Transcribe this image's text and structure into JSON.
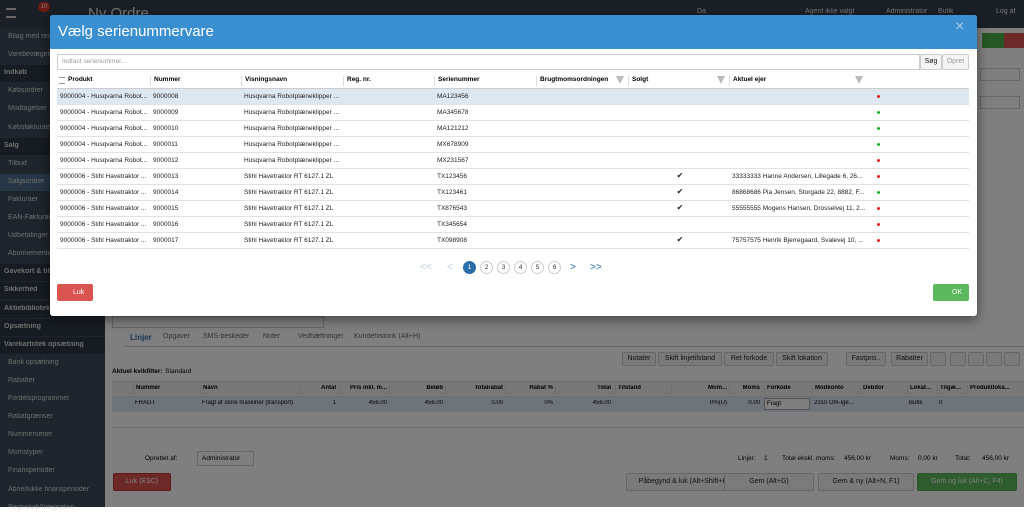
{
  "topbar": {
    "title": "Ny Ordre",
    "badge": "10",
    "language": "Da",
    "agent": "Agent ikke valgt",
    "user": "Administrator",
    "company": "Butik",
    "logout": "Log af"
  },
  "sidebar": {
    "items": [
      {
        "label": "Bilag med res",
        "section": false
      },
      {
        "label": "Varebevægelser",
        "section": false
      },
      {
        "label": "Indkøb",
        "section": true
      },
      {
        "label": "Købsordrer",
        "section": false
      },
      {
        "label": "Modtagelser",
        "section": false
      },
      {
        "label": "Købsfakturaer",
        "section": false
      },
      {
        "label": "Salg",
        "section": true
      },
      {
        "label": "Tilbud",
        "section": false
      },
      {
        "label": "Salgsordrer",
        "section": false,
        "active": true
      },
      {
        "label": "Fakturaer",
        "section": false
      },
      {
        "label": "EAN-Fakturaer",
        "section": false
      },
      {
        "label": "Udbetalinger",
        "section": false
      },
      {
        "label": "Abonnementer",
        "section": false
      },
      {
        "label": "Gavekort & tilgodebeviser",
        "section": true
      },
      {
        "label": "Sikkerhed",
        "section": true
      },
      {
        "label": "Aktiebibliotek",
        "section": true
      },
      {
        "label": "Opsætning",
        "section": true
      },
      {
        "label": "Varekartotek opsætning",
        "section": true
      },
      {
        "label": "Bank opsætning",
        "section": false
      },
      {
        "label": "Rabatter",
        "section": false
      },
      {
        "label": "Fordelsprogrammer",
        "section": false
      },
      {
        "label": "Rabatgrænser",
        "section": false
      },
      {
        "label": "Nummerserier",
        "section": false
      },
      {
        "label": "Momstyper",
        "section": false
      },
      {
        "label": "Finansperioder",
        "section": false
      },
      {
        "label": "Åbne/lukke finansperioder",
        "section": false
      },
      {
        "label": "Regnskab/Integration",
        "section": false
      }
    ]
  },
  "page": {
    "tabs": [
      "Linjer",
      "Opgaver",
      "SMS-beskeder",
      "Noter",
      "Vedhæftninger",
      "Kundehistorik (Alt+H)"
    ],
    "toolbar": [
      "Notater",
      "Skift linjetilstand",
      "Ret forkode",
      "Skift lokation",
      "Fastpris..",
      "Rabatter"
    ],
    "filter_label": "Aktuel kvikfilter:",
    "filter_value": "Standard",
    "columns": [
      "Nummer",
      "Navn",
      "Antal",
      "Pris inkl. m...",
      "Beløb",
      "Totalrabat",
      "Rabat %",
      "Total",
      "Tilstand",
      "Mom...",
      "Moms",
      "Forkode",
      "Modkonto",
      "Debitor",
      "Lokat...",
      "Tilgæ...",
      "Produktloka..."
    ],
    "row": [
      "FRAGT",
      "Fragt af store maskiner (transport)",
      "1",
      "456,00",
      "456,00",
      "0.00",
      "0%",
      "456,00",
      null,
      "0%(U)",
      "0.00",
      "Fragt",
      "2310 Om-igen a",
      null,
      "Butik",
      "0",
      null
    ],
    "created_by_label": "Oprettet af:",
    "created_by": "Administrator",
    "totals": [
      "Linjer:",
      "1",
      "Total ekskl. moms:",
      "456,00 kr",
      "Moms:",
      "0,00 kr",
      "Total:",
      "456,00 kr"
    ],
    "buttons": [
      "Luk (ESC)",
      "Påbegynd & luk (Alt+Shift+K)",
      "Gem (Alt+G)",
      "Gem & ny (Alt+N, F1)",
      "Gem og luk (Alt+C, F4)"
    ]
  },
  "modal": {
    "title": "Vælg serienummervare",
    "close": "×",
    "search_placeholder": "Indtast serienummer...",
    "search_button": "Søg",
    "create_button": "Opret",
    "columns": [
      "Produkt",
      "Nummer",
      "Visningsnavn",
      "Reg. nr.",
      "Serienummer",
      "Brugtmomsordningen",
      "Solgt",
      "Aktuel ejer"
    ],
    "rows": [
      [
        "9000004 - Husqvarna Robot...",
        "9000008",
        "Husqvarna Robotplæneklipper ...",
        null,
        "MA123456",
        null,
        null,
        null
      ],
      [
        "9000004 - Husqvarna Robot...",
        "9000009",
        "Husqvarna Robotplæneklipper ...",
        null,
        "MA345678",
        null,
        null,
        null
      ],
      [
        "9000004 - Husqvarna Robot...",
        "9000010",
        "Husqvarna Robotplæneklipper ...",
        null,
        "MA121212",
        null,
        null,
        null
      ],
      [
        "9000004 - Husqvarna Robot...",
        "9000011",
        "Husqvarna Robotplæneklipper ...",
        null,
        "MX678909",
        null,
        null,
        null
      ],
      [
        "9000004 - Husqvarna Robot...",
        "9000012",
        "Husqvarna Robotplæneklipper ...",
        null,
        "MX231567",
        null,
        null,
        null
      ],
      [
        "9000006 - Stihl Havetraktor ...",
        "9000013",
        "Stihl Havetraktor RT 6127.1 ZL",
        null,
        "TX123456",
        null,
        "✔",
        "33333333 Hanne Andersen, Lillegade 6, 26..."
      ],
      [
        "9000006 - Stihl Havetraktor ...",
        "9000014",
        "Stihl Havetraktor RT 6127.1 ZL",
        null,
        "TX123461",
        null,
        "✔",
        "86868686 Pia Jensen, Storgade 22, 8882, F..."
      ],
      [
        "9000006 - Stihl Havetraktor ...",
        "9000015",
        "Stihl Havetraktor RT 6127.1 ZL",
        null,
        "TX876543",
        null,
        "✔",
        "55555555 Mogens Hansen, Drosselvej 11, 2..."
      ],
      [
        "9000006 - Stihl Havetraktor ...",
        "9000016",
        "Stihl Havetraktor RT 6127.1 ZL",
        null,
        "TX345654",
        null,
        null,
        null
      ],
      [
        "9000006 - Stihl Havetraktor ...",
        "9000017",
        "Stihl Havetraktor RT 6127.1 ZL",
        null,
        "TX098908",
        null,
        "✔",
        "75757575 Henrik Bjerregaard, Svalevej 10, ..."
      ]
    ],
    "status_colors": [
      "#e02020",
      "#22b022",
      "#22b022",
      "#22b022",
      "#e02020",
      "#e02020",
      "#22b022",
      "#e02020",
      "#e02020",
      "#e02020"
    ],
    "pagination": {
      "first": "<<",
      "prev": "<",
      "pages": [
        "1",
        "2",
        "3",
        "4",
        "5",
        "6"
      ],
      "next": ">",
      "last": ">>",
      "active": 0
    },
    "close_button": "Luk",
    "ok_button": "OK"
  }
}
